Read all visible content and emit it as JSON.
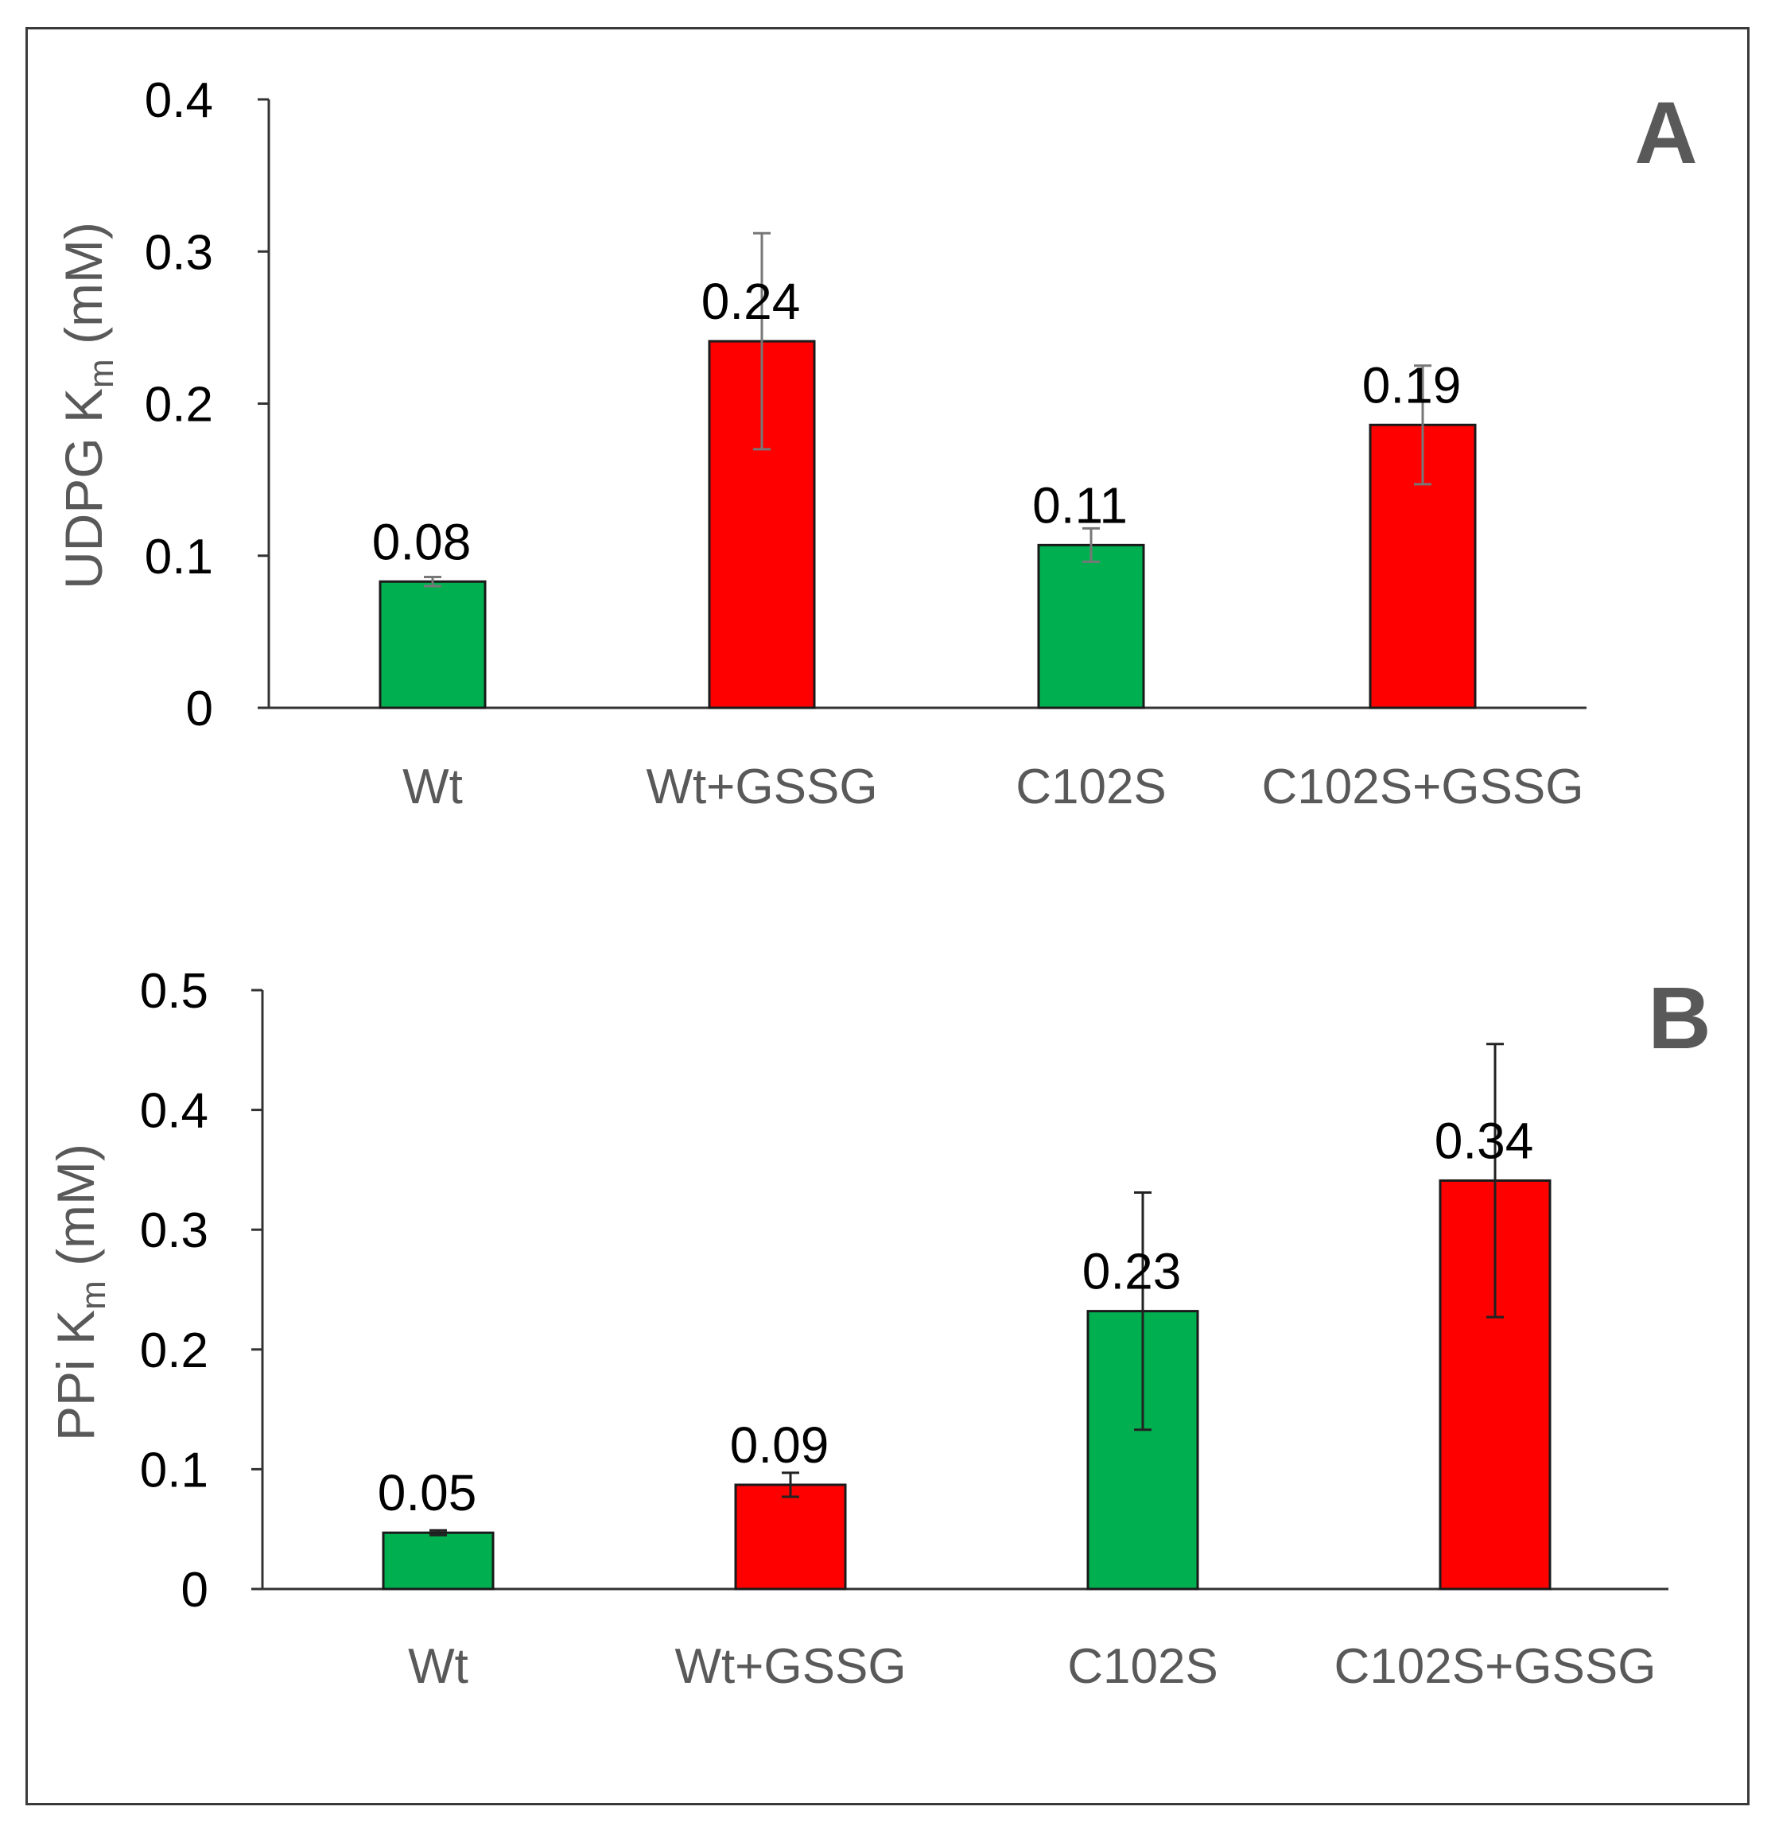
{
  "chart_data": [
    {
      "panel_label": "A",
      "type": "bar",
      "categories": [
        "Wt",
        "Wt+GSSG",
        "C102S",
        "C102S+GSSG"
      ],
      "values": [
        0.083,
        0.241,
        0.107,
        0.186
      ],
      "errors": [
        0.003,
        0.071,
        0.011,
        0.039
      ],
      "data_labels": [
        "0.08",
        "0.24",
        "0.11",
        "0.19"
      ],
      "colors": [
        "#00b050",
        "#ff0000",
        "#00b050",
        "#ff0000"
      ],
      "ylabel": "UDPG K",
      "ylabel_sub": "m",
      "ylabel_unit": " (mM)",
      "ylim": [
        0,
        0.4
      ],
      "yticks": [
        0,
        0.1,
        0.2,
        0.3,
        0.4
      ],
      "ytick_labels": [
        "0",
        "0.1",
        "0.2",
        "0.3",
        "0.4"
      ],
      "error_bar_color": "#777777"
    },
    {
      "panel_label": "B",
      "type": "bar",
      "categories": [
        "Wt",
        "Wt+GSSG",
        "C102S",
        "C102S+GSSG"
      ],
      "values": [
        0.047,
        0.087,
        0.232,
        0.341
      ],
      "errors": [
        0.002,
        0.01,
        0.099,
        0.114
      ],
      "data_labels": [
        "0.05",
        "0.09",
        "0.23",
        "0.34"
      ],
      "colors": [
        "#00b050",
        "#ff0000",
        "#00b050",
        "#ff0000"
      ],
      "ylabel": "PPi K",
      "ylabel_sub": "m",
      "ylabel_unit": " (mM)",
      "ylim": [
        0,
        0.5
      ],
      "yticks": [
        0,
        0.1,
        0.2,
        0.3,
        0.4,
        0.5
      ],
      "ytick_labels": [
        "0",
        "0.1",
        "0.2",
        "0.3",
        "0.4",
        "0.5"
      ],
      "error_bar_color": "#222222"
    }
  ]
}
